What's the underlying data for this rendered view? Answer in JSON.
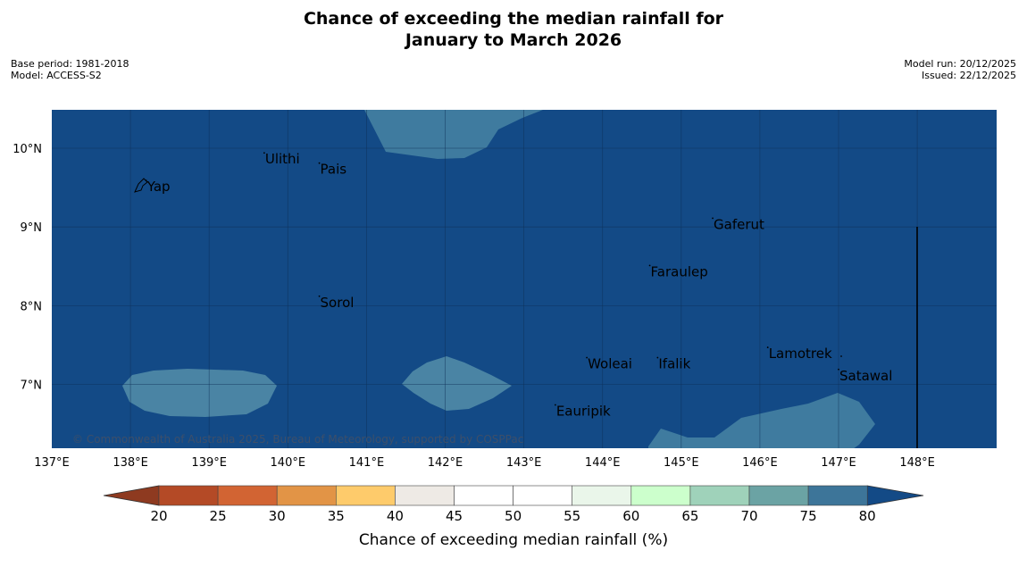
{
  "title": {
    "line1": "Chance of exceeding the median rainfall for",
    "line2": "January to March 2026"
  },
  "meta_left": {
    "base_period": "Base period: 1981-2018",
    "model": "Model: ACCESS-S2"
  },
  "meta_right": {
    "model_run": "Model run: 20/12/2025",
    "issued": "Issued: 22/12/2025"
  },
  "map": {
    "background_color": "#134a86",
    "lon_range": [
      137,
      149
    ],
    "lat_range": [
      6.2,
      10.5
    ],
    "x_ticks": [
      "137°E",
      "138°E",
      "139°E",
      "140°E",
      "141°E",
      "142°E",
      "143°E",
      "144°E",
      "145°E",
      "146°E",
      "147°E",
      "148°E"
    ],
    "y_ticks": [
      "10°N",
      "9°N",
      "8°N",
      "7°N"
    ],
    "places": [
      {
        "name": "Yap",
        "lon": 138.2,
        "lat": 9.5
      },
      {
        "name": "Ulithi",
        "lon": 139.7,
        "lat": 9.85
      },
      {
        "name": "Pais",
        "lon": 140.4,
        "lat": 9.72
      },
      {
        "name": "Gaferut",
        "lon": 145.4,
        "lat": 9.02
      },
      {
        "name": "Faraulep",
        "lon": 144.6,
        "lat": 8.42
      },
      {
        "name": "Sorol",
        "lon": 140.4,
        "lat": 8.03
      },
      {
        "name": "Lamotrek",
        "lon": 146.1,
        "lat": 7.38
      },
      {
        "name": "Woleai",
        "lon": 143.8,
        "lat": 7.25
      },
      {
        "name": "Ifalik",
        "lon": 144.7,
        "lat": 7.25
      },
      {
        "name": "Satawal",
        "lon": 147.0,
        "lat": 7.1
      },
      {
        "name": "Eauripik",
        "lon": 143.4,
        "lat": 6.65
      }
    ],
    "copyright": "© Commonwealth of Australia 2025, Bureau of Meteorology, supported by COSPPac"
  },
  "colorbar": {
    "title": "Chance of exceeding median rainfall (%)",
    "labels": [
      "20",
      "25",
      "30",
      "35",
      "40",
      "45",
      "50",
      "55",
      "60",
      "65",
      "70",
      "75",
      "80"
    ],
    "colors": [
      "#b44a26",
      "#d26433",
      "#e29446",
      "#fecb6b",
      "#eeeae5",
      "#ffffff",
      "#ffffff",
      "#eaf6ea",
      "#ccffcc",
      "#9fd2ba",
      "#6ba3a4",
      "#3d7599"
    ],
    "low_color": "#8e3a20",
    "high_color": "#134a86"
  }
}
